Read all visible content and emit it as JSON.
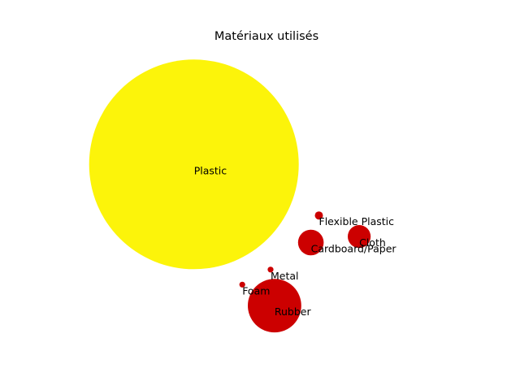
{
  "chart_data": {
    "type": "scatter",
    "title": "Matériaux utilisés",
    "xlabel": "",
    "ylabel": "",
    "axes_visible": false,
    "grid": false,
    "legend": "none",
    "xlim": [
      0,
      10
    ],
    "ylim": [
      0,
      10
    ],
    "colors": {
      "large": "#fcf40a",
      "small": "#cc0000"
    },
    "points": [
      {
        "label": "Plastic",
        "x": 3.2,
        "y": 6.1,
        "size": 100,
        "color": "large"
      },
      {
        "label": "Flexible Plastic",
        "x": 6.3,
        "y": 4.4,
        "size": 0.15,
        "color": "small"
      },
      {
        "label": "Cloth",
        "x": 7.3,
        "y": 3.7,
        "size": 1.2,
        "color": "small"
      },
      {
        "label": "Cardboard/Paper",
        "x": 6.1,
        "y": 3.5,
        "size": 1.5,
        "color": "small"
      },
      {
        "label": "Metal",
        "x": 5.1,
        "y": 2.6,
        "size": 0.08,
        "color": "small"
      },
      {
        "label": "Foam",
        "x": 4.4,
        "y": 2.1,
        "size": 0.08,
        "color": "small"
      },
      {
        "label": "Rubber",
        "x": 5.2,
        "y": 1.4,
        "size": 6.5,
        "color": "small"
      }
    ]
  }
}
